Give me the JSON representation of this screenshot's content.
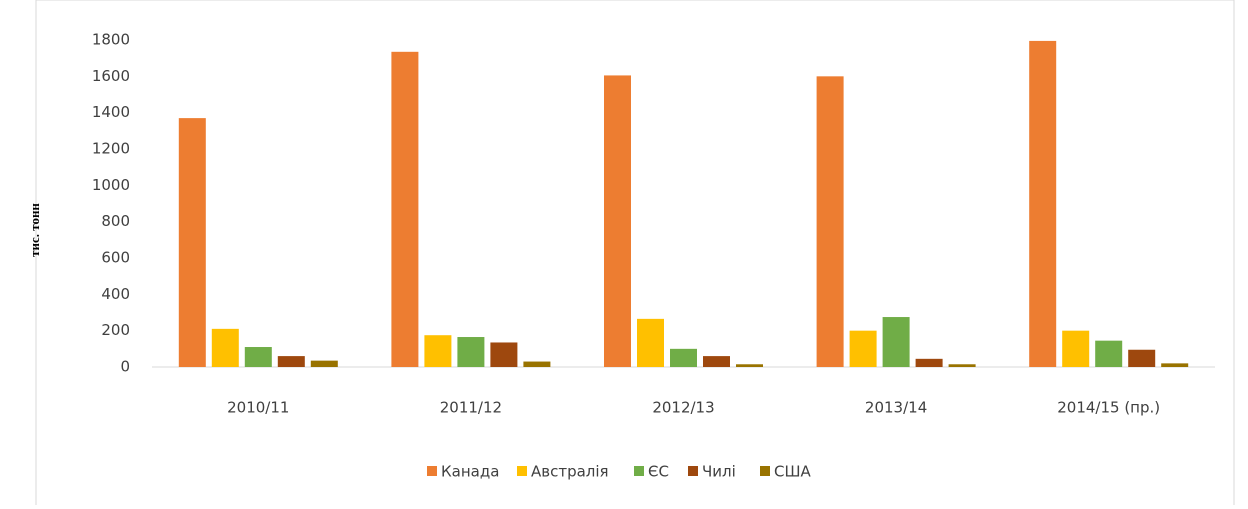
{
  "chart_data": {
    "type": "bar",
    "y_label": "тис. тонн",
    "categories": [
      "2010/11",
      "2011/12",
      "2012/13",
      "2013/14",
      "2014/15 (пр.)"
    ],
    "series": [
      {
        "name": "Канада",
        "color": "#ED7D31",
        "values": [
          1370,
          1735,
          1605,
          1600,
          1795
        ]
      },
      {
        "name": "Австралія",
        "color": "#FFC000",
        "values": [
          210,
          175,
          265,
          200,
          200
        ]
      },
      {
        "name": "ЄС",
        "color": "#70AD47",
        "values": [
          110,
          165,
          100,
          275,
          145
        ]
      },
      {
        "name": "Чилі",
        "color": "#9E480E",
        "values": [
          60,
          135,
          60,
          45,
          95
        ]
      },
      {
        "name": "США",
        "color": "#997300",
        "values": [
          35,
          30,
          15,
          15,
          20
        ]
      }
    ],
    "ylim": [
      0,
      1800
    ],
    "yticks": [
      0,
      200,
      400,
      600,
      800,
      1000,
      1200,
      1400,
      1600,
      1800
    ],
    "grid": false,
    "legend": "bottom"
  }
}
